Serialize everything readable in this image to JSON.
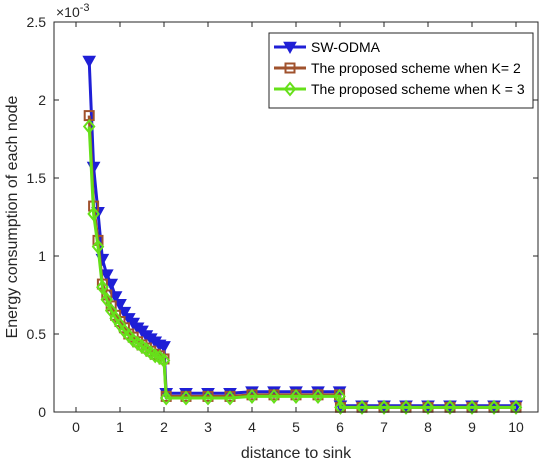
{
  "chart_data": {
    "type": "line",
    "title": "",
    "xlabel": "distance to sink",
    "ylabel": "Energy consumption of each node",
    "y_exponent_label": "×10",
    "y_exponent_power": "-3",
    "xlim": [
      -0.5,
      10.5
    ],
    "ylim": [
      0,
      2.5
    ],
    "xticks": [
      0,
      1,
      2,
      3,
      4,
      5,
      6,
      7,
      8,
      9,
      10
    ],
    "yticks": [
      0,
      0.5,
      1,
      1.5,
      2,
      2.5
    ],
    "ytick_labels": [
      "0",
      "0.5",
      "1",
      "1.5",
      "2",
      "2.5"
    ],
    "legend_position": "top-right",
    "series": [
      {
        "name": "SW-ODMA",
        "color": "#1f1fd6",
        "marker": "triangle-down",
        "x": [
          0.3,
          0.4,
          0.5,
          0.6,
          0.7,
          0.8,
          0.9,
          1.0,
          1.1,
          1.2,
          1.3,
          1.4,
          1.5,
          1.6,
          1.7,
          1.8,
          1.9,
          2.0,
          2.05,
          2.5,
          3.0,
          3.5,
          4.0,
          4.5,
          5.0,
          5.5,
          5.99,
          6.01,
          6.5,
          7.0,
          7.5,
          8.0,
          8.5,
          9.0,
          9.5,
          10.0
        ],
        "y": [
          2.25,
          1.57,
          1.28,
          0.98,
          0.88,
          0.82,
          0.74,
          0.69,
          0.64,
          0.6,
          0.57,
          0.54,
          0.52,
          0.49,
          0.47,
          0.45,
          0.43,
          0.42,
          0.12,
          0.12,
          0.12,
          0.12,
          0.13,
          0.13,
          0.13,
          0.13,
          0.13,
          0.04,
          0.04,
          0.04,
          0.04,
          0.04,
          0.04,
          0.04,
          0.04,
          0.04
        ]
      },
      {
        "name": "The proposed scheme when K= 2",
        "color": "#a0522d",
        "marker": "square",
        "x": [
          0.3,
          0.4,
          0.5,
          0.6,
          0.7,
          0.8,
          0.9,
          1.0,
          1.1,
          1.2,
          1.3,
          1.4,
          1.5,
          1.6,
          1.7,
          1.8,
          1.9,
          2.0,
          2.05,
          2.5,
          3.0,
          3.5,
          4.0,
          4.5,
          5.0,
          5.5,
          5.99,
          6.01,
          6.5,
          7.0,
          7.5,
          8.0,
          8.5,
          9.0,
          9.5,
          10.0
        ],
        "y": [
          1.9,
          1.32,
          1.1,
          0.82,
          0.75,
          0.68,
          0.62,
          0.58,
          0.54,
          0.5,
          0.48,
          0.45,
          0.43,
          0.41,
          0.39,
          0.37,
          0.36,
          0.34,
          0.1,
          0.1,
          0.1,
          0.1,
          0.11,
          0.11,
          0.11,
          0.11,
          0.11,
          0.03,
          0.03,
          0.03,
          0.03,
          0.03,
          0.03,
          0.03,
          0.03,
          0.03
        ]
      },
      {
        "name": "The proposed scheme when K = 3",
        "color": "#66e01a",
        "marker": "diamond",
        "x": [
          0.3,
          0.4,
          0.5,
          0.6,
          0.7,
          0.8,
          0.9,
          1.0,
          1.1,
          1.2,
          1.3,
          1.4,
          1.5,
          1.6,
          1.7,
          1.8,
          1.9,
          2.0,
          2.05,
          2.5,
          3.0,
          3.5,
          4.0,
          4.5,
          5.0,
          5.5,
          5.99,
          6.01,
          6.5,
          7.0,
          7.5,
          8.0,
          8.5,
          9.0,
          9.5,
          10.0
        ],
        "y": [
          1.83,
          1.27,
          1.06,
          0.8,
          0.72,
          0.65,
          0.6,
          0.56,
          0.52,
          0.49,
          0.46,
          0.44,
          0.42,
          0.4,
          0.38,
          0.36,
          0.35,
          0.33,
          0.09,
          0.09,
          0.09,
          0.09,
          0.1,
          0.1,
          0.1,
          0.1,
          0.1,
          0.03,
          0.03,
          0.03,
          0.03,
          0.03,
          0.03,
          0.03,
          0.03,
          0.03
        ]
      }
    ]
  }
}
